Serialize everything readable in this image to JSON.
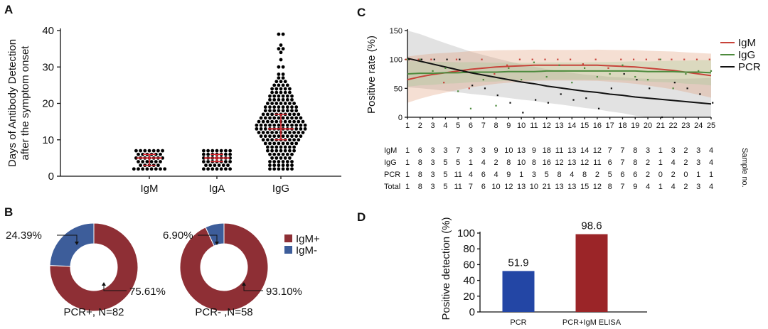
{
  "panels": {
    "a": "A",
    "b": "B",
    "c": "C",
    "d": "D"
  },
  "chart_data": [
    {
      "panel": "A",
      "type": "scatter",
      "ylabel_lines": [
        "Days of Antibody Detection",
        "after the symptom onset"
      ],
      "categories": [
        "IgM",
        "IgA",
        "IgG"
      ],
      "ylim": [
        0,
        40
      ],
      "yticks": [
        0,
        10,
        20,
        30,
        40
      ],
      "series": [
        {
          "values": [
            2,
            2,
            2,
            2,
            2,
            2,
            2,
            2,
            3,
            3,
            3,
            3,
            3,
            4,
            4,
            4,
            4,
            4,
            4,
            5,
            5,
            5,
            5,
            5,
            5,
            5,
            6,
            6,
            6,
            6,
            6,
            6,
            7,
            7,
            7,
            7,
            7,
            7,
            7
          ],
          "median": 5,
          "iqr": [
            3,
            6
          ]
        },
        {
          "values": [
            2,
            2,
            2,
            2,
            2,
            2,
            2,
            3,
            3,
            3,
            3,
            3,
            3,
            4,
            4,
            4,
            4,
            4,
            4,
            4,
            5,
            5,
            5,
            5,
            5,
            5,
            5,
            6,
            6,
            6,
            6,
            6,
            6,
            6,
            7,
            7,
            7,
            7,
            7,
            7,
            7
          ],
          "median": 5,
          "iqr": [
            4,
            6
          ]
        },
        {
          "values": [
            2,
            2,
            2,
            2,
            2,
            2,
            3,
            3,
            3,
            3,
            3,
            3,
            4,
            4,
            4,
            4,
            4,
            4,
            5,
            5,
            5,
            5,
            5,
            6,
            6,
            6,
            6,
            6,
            6,
            7,
            7,
            7,
            7,
            7,
            7,
            7,
            8,
            8,
            8,
            8,
            8,
            8,
            8,
            9,
            9,
            9,
            9,
            9,
            9,
            9,
            9,
            10,
            10,
            10,
            10,
            10,
            10,
            10,
            10,
            10,
            11,
            11,
            11,
            11,
            11,
            11,
            11,
            11,
            11,
            11,
            12,
            12,
            12,
            12,
            12,
            12,
            12,
            12,
            12,
            12,
            12,
            13,
            13,
            13,
            13,
            13,
            13,
            13,
            13,
            13,
            13,
            13,
            13,
            14,
            14,
            14,
            14,
            14,
            14,
            14,
            14,
            14,
            14,
            14,
            14,
            15,
            15,
            15,
            15,
            15,
            15,
            15,
            15,
            15,
            15,
            15,
            16,
            16,
            16,
            16,
            16,
            16,
            16,
            16,
            16,
            16,
            17,
            17,
            17,
            17,
            17,
            17,
            17,
            17,
            17,
            18,
            18,
            18,
            18,
            18,
            18,
            18,
            18,
            19,
            19,
            19,
            19,
            19,
            19,
            19,
            19,
            20,
            20,
            20,
            20,
            20,
            20,
            20,
            21,
            21,
            21,
            21,
            21,
            21,
            22,
            22,
            22,
            22,
            22,
            22,
            23,
            23,
            23,
            23,
            23,
            24,
            24,
            24,
            24,
            24,
            25,
            25,
            25,
            25,
            26,
            26,
            26,
            27,
            27,
            28,
            28,
            30,
            30,
            32,
            34,
            35,
            35,
            36,
            39,
            39
          ],
          "median": 13,
          "iqr": [
            10,
            17
          ]
        }
      ]
    },
    {
      "panel": "B",
      "type": "pie",
      "charts": [
        {
          "caption": "PCR+, N=82",
          "labels": [
            "IgM+",
            "IgM-"
          ],
          "values": [
            75.61,
            24.39
          ],
          "value_labels": [
            "75.61%",
            "24.39%"
          ]
        },
        {
          "caption": "PCR- ,N=58",
          "labels": [
            "IgM+",
            "IgM-"
          ],
          "values": [
            93.1,
            6.9
          ],
          "value_labels": [
            "93.10%",
            "6.90%"
          ]
        }
      ],
      "legend": [
        "IgM+",
        "IgM-"
      ],
      "colors": [
        "#8e2f35",
        "#3d5d9a"
      ]
    },
    {
      "panel": "C",
      "type": "line",
      "ylabel": "Positive rate (%)",
      "x": [
        1,
        2,
        3,
        4,
        5,
        6,
        7,
        8,
        9,
        10,
        11,
        12,
        13,
        14,
        15,
        16,
        17,
        18,
        19,
        20,
        21,
        22,
        23,
        24,
        25
      ],
      "ylim": [
        0,
        150
      ],
      "yticks": [
        0,
        50,
        100,
        150
      ],
      "legend": [
        "IgM",
        "IgG",
        "PCR"
      ],
      "colors": {
        "IgM": "#c8433a",
        "IgG": "#4d8a3d",
        "PCR": "#111111"
      },
      "series": [
        {
          "name": "IgM",
          "fit": [
            65,
            70,
            74,
            77,
            80,
            83,
            85,
            87,
            88,
            89,
            90,
            90,
            90,
            90,
            90,
            90,
            89,
            88,
            87,
            85,
            83,
            81,
            78,
            75,
            72
          ],
          "points": [
            100,
            100,
            100,
            60,
            100,
            50,
            100,
            75,
            90,
            100,
            100,
            100,
            100,
            100,
            92,
            100,
            85,
            100,
            100,
            100,
            100,
            100,
            100,
            100,
            100
          ]
        },
        {
          "name": "IgG",
          "fit": [
            75,
            76,
            76,
            77,
            77,
            78,
            78,
            78,
            79,
            79,
            79,
            80,
            80,
            80,
            80,
            80,
            80,
            80,
            80,
            79,
            79,
            79,
            78,
            78,
            77
          ],
          "points": [
            100,
            100,
            80,
            85,
            45,
            15,
            65,
            20,
            85,
            65,
            95,
            70,
            90,
            60,
            85,
            70,
            75,
            90,
            70,
            65,
            100,
            50,
            75,
            80,
            80
          ]
        },
        {
          "name": "PCR",
          "fit": [
            102,
            97,
            92,
            87,
            82,
            77,
            73,
            69,
            65,
            61,
            58,
            54,
            51,
            48,
            45,
            43,
            40,
            38,
            35,
            33,
            31,
            29,
            27,
            25,
            23
          ],
          "points": [
            100,
            100,
            100,
            100,
            100,
            55,
            50,
            38,
            25,
            8,
            30,
            25,
            40,
            30,
            33,
            15,
            50,
            75,
            65,
            50,
            0,
            60,
            50,
            40,
            25
          ]
        }
      ],
      "table": {
        "side_label": "Sample no.",
        "rows": [
          {
            "label": "IgM",
            "values": [
              "1",
              "6",
              "3",
              "3",
              "7",
              "3",
              "3",
              "9",
              "10",
              "13",
              "9",
              "18",
              "11",
              "13",
              "14",
              "12",
              "7",
              "7",
              "8",
              "3",
              "1",
              "3",
              "2",
              "3",
              "4"
            ]
          },
          {
            "label": "IgG",
            "values": [
              "1",
              "8",
              "3",
              "5",
              "5",
              "1",
              "4",
              "2",
              "8",
              "10",
              "8",
              "16",
              "12",
              "13",
              "12",
              "11",
              "6",
              "7",
              "8",
              "2",
              "1",
              "4",
              "2",
              "3",
              "4"
            ]
          },
          {
            "label": "PCR",
            "values": [
              "1",
              "8",
              "3",
              "5",
              "11",
              "4",
              "6",
              "4",
              "9",
              "1",
              "3",
              "5",
              "8",
              "4",
              "8",
              "2",
              "5",
              "6",
              "6",
              "2",
              "0",
              "2",
              "0",
              "1",
              "1"
            ]
          },
          {
            "label": "Total",
            "values": [
              "1",
              "8",
              "3",
              "5",
              "11",
              "7",
              "6",
              "10",
              "12",
              "13",
              "10",
              "21",
              "13",
              "13",
              "15",
              "12",
              "8",
              "7",
              "9",
              "4",
              "1",
              "4",
              "2",
              "3",
              "4"
            ]
          }
        ]
      }
    },
    {
      "panel": "D",
      "type": "bar",
      "ylabel": "Positive detection (%)",
      "categories": [
        "PCR",
        "PCR+IgM ELISA"
      ],
      "values": [
        51.9,
        98.6
      ],
      "value_labels": [
        "51.9",
        "98.6"
      ],
      "ylim": [
        0,
        100
      ],
      "yticks": [
        0,
        20,
        40,
        60,
        80,
        100
      ],
      "colors": [
        "#2346a5",
        "#9b2528"
      ]
    }
  ]
}
